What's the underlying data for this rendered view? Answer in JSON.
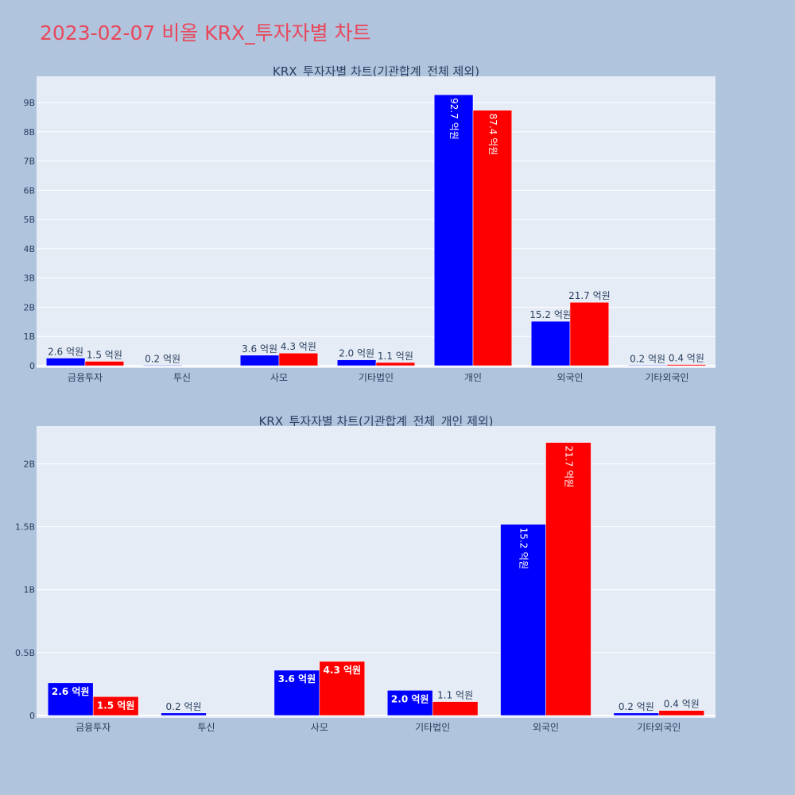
{
  "page_title": "2023-02-07 비올 KRX_투자자별 차트",
  "colors": {
    "buy": "#0000ff",
    "sell": "#ff0000",
    "plot_bg": "#e5ecf6",
    "page_bg": "#b0c4de",
    "title": "#e9475a"
  },
  "chart_data": [
    {
      "type": "bar",
      "title": "KRX_투자자별 차트(기관합계_전체 제외)",
      "categories": [
        "금융투자",
        "투신",
        "사모",
        "기타법인",
        "개인",
        "외국인",
        "기타외국인"
      ],
      "ylim": [
        0,
        9.9
      ],
      "yticks": [
        0,
        1,
        2,
        3,
        4,
        5,
        6,
        7,
        8,
        9
      ],
      "ytick_labels": [
        "0",
        "1B",
        "2B",
        "3B",
        "4B",
        "5B",
        "6B",
        "7B",
        "8B",
        "9B"
      ],
      "grid": true,
      "series": [
        {
          "color": "#0000ff",
          "values": [
            0.26,
            0.02,
            0.36,
            0.2,
            9.27,
            1.52,
            0.02
          ],
          "labels": [
            "2.6 억원",
            "0.2 억원",
            "3.6 억원",
            "2.0 억원",
            "92.7 억원",
            "15.2 억원",
            "0.2 억원"
          ]
        },
        {
          "color": "#ff0000",
          "values": [
            0.15,
            0,
            0.43,
            0.11,
            8.74,
            2.17,
            0.04
          ],
          "labels": [
            "1.5 억원",
            "",
            "4.3 억원",
            "1.1 억원",
            "87.4 억원",
            "21.7 억원",
            "0.4 억원"
          ]
        }
      ]
    },
    {
      "type": "bar",
      "title": "KRX_투자자별 차트(기관합계_전체_개인 제외)",
      "categories": [
        "금융투자",
        "투신",
        "사모",
        "기타법인",
        "외국인",
        "기타외국인"
      ],
      "ylim": [
        0,
        2.3
      ],
      "yticks": [
        0,
        0.5,
        1,
        1.5,
        2
      ],
      "ytick_labels": [
        "0",
        "0.5B",
        "1B",
        "1.5B",
        "2B"
      ],
      "grid": true,
      "series": [
        {
          "color": "#0000ff",
          "values": [
            0.26,
            0.02,
            0.36,
            0.2,
            1.52,
            0.02
          ],
          "labels": [
            "2.6 억원",
            "0.2 억원",
            "3.6 억원",
            "2.0 억원",
            "15.2 억원",
            "0.2 억원"
          ]
        },
        {
          "color": "#ff0000",
          "values": [
            0.15,
            0,
            0.43,
            0.11,
            2.17,
            0.04
          ],
          "labels": [
            "1.5 억원",
            "",
            "4.3 억원",
            "1.1 억원",
            "21.7 억원",
            "0.4 억원"
          ]
        }
      ]
    }
  ]
}
